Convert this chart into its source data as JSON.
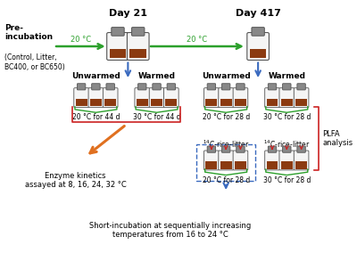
{
  "bg_color": "#ffffff",
  "day21_label": "Day 21",
  "day417_label": "Day 417",
  "pre_incubation_label": "Pre-\nincubation",
  "pre_incubation_sub": "(Control, Litter,\nBC400, or BC650)",
  "temp_20c": "20 °C",
  "unwarmed": "Unwarmed",
  "warmed": "Warmed",
  "temp_20_44": "20 °C for 44 d",
  "temp_30_44": "30 °C for 44 d",
  "temp_20_28": "20 °C for 28 d",
  "temp_30_28": "30 °C for 28 d",
  "c14_label_1": "$^{14}$C-rice-litter",
  "c14_label_2": "$^{14}$C-rice-litter",
  "enzyme_label": "Enzyme kinetics\nassayed at 8, 16, 24, 32 °C",
  "plfa_label": "PLFA\nanalysis",
  "short_incub_label": "Short-incubation at sequentially increasing\ntemperatures from 16 to 24 °C",
  "green_color": "#2ca02c",
  "blue_color": "#3a6abf",
  "red_color": "#cc2222",
  "orange_color": "#e07020",
  "soil_color": "#8B3A10",
  "bottle_body": "#f5f5f5",
  "bottle_cap": "#888888",
  "bottle_edge": "#555555"
}
